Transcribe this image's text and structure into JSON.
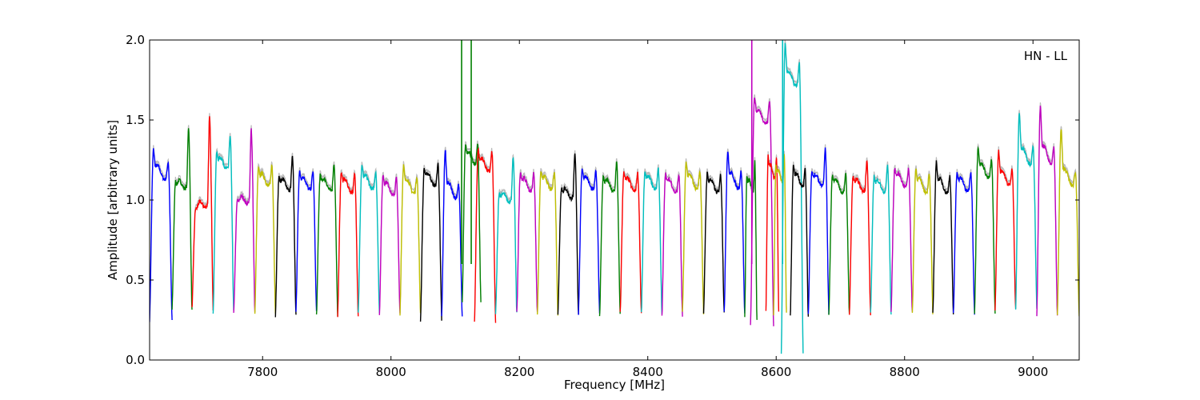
{
  "chart_data": {
    "type": "line",
    "title": "",
    "xlabel": "Frequency [MHz]",
    "ylabel": "Amplitude [arbitrary units]",
    "annotation": "HN - LL",
    "xlim": [
      7624,
      9072
    ],
    "ylim": [
      0.0,
      2.0
    ],
    "x_ticks": [
      7800,
      8000,
      8200,
      8400,
      8600,
      8800,
      9000
    ],
    "x_tick_labels": [
      "7800",
      "8000",
      "8200",
      "8400",
      "8600",
      "8800",
      "9000"
    ],
    "y_ticks": [
      0.0,
      0.5,
      1.0,
      1.5,
      2.0
    ],
    "y_tick_labels": [
      "0.0",
      "0.5",
      "1.0",
      "1.5",
      "2.0"
    ],
    "grid": false,
    "legend": "none",
    "channel_width_mhz": 32,
    "color_cycle": [
      "#0000ff",
      "#008000",
      "#ff0000",
      "#00bfbf",
      "#bf00bf",
      "#bfbf00",
      "#000000"
    ],
    "shadow_color": "#bbbbbb",
    "series": [
      {
        "start": 7624,
        "end": 7659,
        "color": "#0000ff",
        "left_peak": 1.32,
        "right_peak": 1.24,
        "low": 0.25
      },
      {
        "start": 7659,
        "end": 7690,
        "color": "#008000",
        "left_peak": 1.12,
        "right_peak": 1.46,
        "low": 0.31
      },
      {
        "start": 7690,
        "end": 7723,
        "color": "#ff0000",
        "left_peak": 0.95,
        "right_peak": 1.52,
        "low": 0.32
      },
      {
        "start": 7723,
        "end": 7755,
        "color": "#00bfbf",
        "left_peak": 1.3,
        "right_peak": 1.4,
        "low": 0.3
      },
      {
        "start": 7755,
        "end": 7788,
        "color": "#bf00bf",
        "left_peak": 1.0,
        "right_peak": 1.45,
        "low": 0.29
      },
      {
        "start": 7788,
        "end": 7820,
        "color": "#bfbf00",
        "left_peak": 1.2,
        "right_peak": 1.22,
        "low": 0.3
      },
      {
        "start": 7820,
        "end": 7852,
        "color": "#000000",
        "left_peak": 1.15,
        "right_peak": 1.28,
        "low": 0.28
      },
      {
        "start": 7852,
        "end": 7884,
        "color": "#0000ff",
        "left_peak": 1.18,
        "right_peak": 1.18,
        "low": 0.3
      },
      {
        "start": 7884,
        "end": 7917,
        "color": "#008000",
        "left_peak": 1.16,
        "right_peak": 1.23,
        "low": 0.28
      },
      {
        "start": 7917,
        "end": 7949,
        "color": "#ff0000",
        "left_peak": 1.18,
        "right_peak": 1.16,
        "low": 0.28
      },
      {
        "start": 7949,
        "end": 7982,
        "color": "#00bfbf",
        "left_peak": 1.22,
        "right_peak": 1.18,
        "low": 0.3
      },
      {
        "start": 7982,
        "end": 8014,
        "color": "#bf00bf",
        "left_peak": 1.16,
        "right_peak": 1.14,
        "low": 0.29
      },
      {
        "start": 8014,
        "end": 8046,
        "color": "#bfbf00",
        "left_peak": 1.22,
        "right_peak": 1.15,
        "low": 0.29
      },
      {
        "start": 8046,
        "end": 8079,
        "color": "#000000",
        "left_peak": 1.2,
        "right_peak": 1.23,
        "low": 0.25
      },
      {
        "start": 8079,
        "end": 8111,
        "color": "#0000ff",
        "left_peak": 1.32,
        "right_peak": 1.1,
        "low": 0.27
      },
      {
        "start": 8111,
        "end": 8140,
        "color": "#008000",
        "left_peak": 1.35,
        "right_peak": 1.35,
        "low": 0.36
      },
      {
        "start": 8130,
        "end": 8163,
        "color": "#ff0000",
        "left_peak": 1.32,
        "right_peak": 1.3,
        "low": 0.23
      },
      {
        "start": 8163,
        "end": 8196,
        "color": "#00bfbf",
        "left_peak": 1.05,
        "right_peak": 1.27,
        "low": 0.29
      },
      {
        "start": 8196,
        "end": 8228,
        "color": "#bf00bf",
        "left_peak": 1.18,
        "right_peak": 1.17,
        "low": 0.29
      },
      {
        "start": 8228,
        "end": 8260,
        "color": "#bfbf00",
        "left_peak": 1.18,
        "right_peak": 1.18,
        "low": 0.29
      },
      {
        "start": 8260,
        "end": 8292,
        "color": "#000000",
        "left_peak": 1.08,
        "right_peak": 1.29,
        "low": 0.29
      },
      {
        "start": 8292,
        "end": 8325,
        "color": "#0000ff",
        "left_peak": 1.2,
        "right_peak": 1.18,
        "low": 0.29
      },
      {
        "start": 8325,
        "end": 8357,
        "color": "#008000",
        "left_peak": 1.15,
        "right_peak": 1.24,
        "low": 0.28
      },
      {
        "start": 8357,
        "end": 8390,
        "color": "#ff0000",
        "left_peak": 1.18,
        "right_peak": 1.17,
        "low": 0.29
      },
      {
        "start": 8390,
        "end": 8422,
        "color": "#00bfbf",
        "left_peak": 1.18,
        "right_peak": 1.2,
        "low": 0.29
      },
      {
        "start": 8422,
        "end": 8454,
        "color": "#bf00bf",
        "left_peak": 1.17,
        "right_peak": 1.16,
        "low": 0.27
      },
      {
        "start": 8454,
        "end": 8487,
        "color": "#bfbf00",
        "left_peak": 1.24,
        "right_peak": 1.18,
        "low": 0.29
      },
      {
        "start": 8487,
        "end": 8519,
        "color": "#000000",
        "left_peak": 1.17,
        "right_peak": 1.16,
        "low": 0.29
      },
      {
        "start": 8519,
        "end": 8551,
        "color": "#0000ff",
        "left_peak": 1.31,
        "right_peak": 1.18,
        "low": 0.29
      },
      {
        "start": 8551,
        "end": 8570,
        "color": "#008000",
        "left_peak": 1.15,
        "right_peak": 1.24,
        "low": 0.26
      },
      {
        "start": 8560,
        "end": 8596,
        "color": "#bf00bf",
        "left_peak": 1.65,
        "right_peak": 1.62,
        "low": 0.21
      },
      {
        "start": 8584,
        "end": 8604,
        "color": "#ff0000",
        "left_peak": 1.28,
        "right_peak": 1.26,
        "low": 0.3
      },
      {
        "start": 8596,
        "end": 8616,
        "color": "#bfbf00",
        "left_peak": 1.22,
        "right_peak": 1.28,
        "low": 0.29
      },
      {
        "start": 8608,
        "end": 8642,
        "color": "#00bfbf",
        "left_peak": 1.98,
        "right_peak": 1.86,
        "low": 0.04
      },
      {
        "start": 8622,
        "end": 8650,
        "color": "#000000",
        "left_peak": 1.22,
        "right_peak": 1.2,
        "low": 0.27
      },
      {
        "start": 8650,
        "end": 8682,
        "color": "#0000ff",
        "left_peak": 1.18,
        "right_peak": 1.33,
        "low": 0.29
      },
      {
        "start": 8682,
        "end": 8714,
        "color": "#008000",
        "left_peak": 1.16,
        "right_peak": 1.16,
        "low": 0.29
      },
      {
        "start": 8714,
        "end": 8747,
        "color": "#ff0000",
        "left_peak": 1.15,
        "right_peak": 1.25,
        "low": 0.29
      },
      {
        "start": 8747,
        "end": 8779,
        "color": "#00bfbf",
        "left_peak": 1.15,
        "right_peak": 1.22,
        "low": 0.29
      },
      {
        "start": 8779,
        "end": 8812,
        "color": "#bf00bf",
        "left_peak": 1.2,
        "right_peak": 1.2,
        "low": 0.29
      },
      {
        "start": 8812,
        "end": 8844,
        "color": "#bfbf00",
        "left_peak": 1.2,
        "right_peak": 1.16,
        "low": 0.29
      },
      {
        "start": 8844,
        "end": 8876,
        "color": "#000000",
        "left_peak": 1.24,
        "right_peak": 1.15,
        "low": 0.29
      },
      {
        "start": 8876,
        "end": 8909,
        "color": "#0000ff",
        "left_peak": 1.18,
        "right_peak": 1.17,
        "low": 0.29
      },
      {
        "start": 8909,
        "end": 8941,
        "color": "#008000",
        "left_peak": 1.34,
        "right_peak": 1.25,
        "low": 0.3
      },
      {
        "start": 8941,
        "end": 8973,
        "color": "#ff0000",
        "left_peak": 1.31,
        "right_peak": 1.2,
        "low": 0.31
      },
      {
        "start": 8973,
        "end": 9006,
        "color": "#00bfbf",
        "left_peak": 1.55,
        "right_peak": 1.33,
        "low": 0.31
      },
      {
        "start": 9006,
        "end": 9038,
        "color": "#bf00bf",
        "left_peak": 1.6,
        "right_peak": 1.33,
        "low": 0.28
      },
      {
        "start": 9038,
        "end": 9072,
        "color": "#bfbf00",
        "left_peak": 1.45,
        "right_peak": 1.18,
        "low": 0.28
      }
    ]
  }
}
